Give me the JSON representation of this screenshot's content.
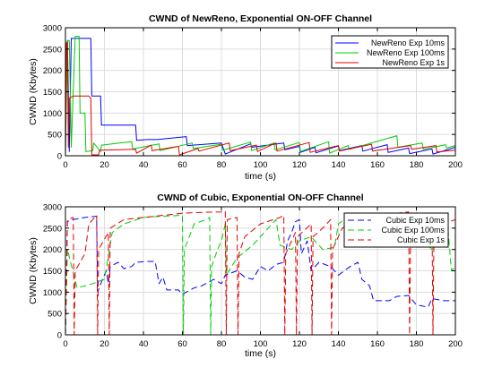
{
  "chart_data": [
    {
      "type": "line",
      "title": "CWND of NewReno, Exponential ON-OFF Channel",
      "xlabel": "time (s)",
      "ylabel": "CWND (Kbytes)",
      "xlim": [
        0,
        200
      ],
      "ylim": [
        0,
        3000
      ],
      "xticks": [
        0,
        20,
        40,
        60,
        80,
        100,
        120,
        140,
        160,
        180,
        200
      ],
      "yticks": [
        0,
        500,
        1000,
        1500,
        2000,
        2500,
        3000
      ],
      "grid": true,
      "legend_position": "top-right",
      "series": [
        {
          "name": "NewReno Exp 10ms",
          "color": "#0000ff",
          "dash": "solid",
          "points": [
            [
              0,
              0
            ],
            [
              0.5,
              2600
            ],
            [
              1,
              2700
            ],
            [
              2,
              100
            ],
            [
              3,
              2750
            ],
            [
              13,
              2750
            ],
            [
              13.5,
              1400
            ],
            [
              18,
              1400
            ],
            [
              18.5,
              720
            ],
            [
              36,
              720
            ],
            [
              36.5,
              360
            ],
            [
              42,
              380
            ],
            [
              47,
              380
            ],
            [
              62,
              450
            ],
            [
              62.5,
              240
            ],
            [
              80,
              300
            ],
            [
              82,
              40
            ],
            [
              95,
              280
            ],
            [
              95.5,
              200
            ],
            [
              112,
              300
            ],
            [
              112.5,
              140
            ],
            [
              120,
              220
            ],
            [
              120.5,
              80
            ],
            [
              128,
              200
            ],
            [
              128.5,
              70
            ],
            [
              140,
              230
            ],
            [
              140.5,
              120
            ],
            [
              152,
              240
            ],
            [
              152.5,
              110
            ],
            [
              165,
              260
            ],
            [
              165.5,
              80
            ],
            [
              176,
              180
            ],
            [
              176.5,
              50
            ],
            [
              188,
              160
            ],
            [
              188.5,
              40
            ],
            [
              200,
              200
            ]
          ]
        },
        {
          "name": "NewReno Exp 100ms",
          "color": "#00cc00",
          "dash": "solid",
          "points": [
            [
              0,
              0
            ],
            [
              1,
              2700
            ],
            [
              2,
              2700
            ],
            [
              3,
              200
            ],
            [
              5,
              2800
            ],
            [
              7,
              2800
            ],
            [
              7.5,
              1000
            ],
            [
              10,
              1000
            ],
            [
              10.5,
              100
            ],
            [
              14,
              120
            ],
            [
              14.5,
              300
            ],
            [
              18,
              100
            ],
            [
              18.5,
              250
            ],
            [
              34,
              330
            ],
            [
              34.5,
              160
            ],
            [
              48,
              280
            ],
            [
              48.5,
              120
            ],
            [
              65,
              300
            ],
            [
              65.5,
              170
            ],
            [
              80,
              270
            ],
            [
              80.5,
              130
            ],
            [
              95,
              320
            ],
            [
              95.5,
              120
            ],
            [
              107,
              300
            ],
            [
              107.5,
              140
            ],
            [
              120,
              310
            ],
            [
              120.5,
              100
            ],
            [
              135,
              330
            ],
            [
              135.5,
              60
            ],
            [
              145,
              240
            ],
            [
              145.5,
              150
            ],
            [
              170,
              470
            ],
            [
              170.5,
              200
            ],
            [
              183,
              300
            ],
            [
              183.5,
              150
            ],
            [
              195,
              260
            ],
            [
              195.5,
              180
            ],
            [
              200,
              240
            ]
          ]
        },
        {
          "name": "NewReno Exp 1s",
          "color": "#e00000",
          "dash": "solid",
          "points": [
            [
              0,
              0
            ],
            [
              0.5,
              2650
            ],
            [
              1,
              2650
            ],
            [
              1.5,
              200
            ],
            [
              2,
              1350
            ],
            [
              4,
              1400
            ],
            [
              12,
              1400
            ],
            [
              13,
              1350
            ],
            [
              13.5,
              20
            ],
            [
              17,
              20
            ],
            [
              17.5,
              130
            ],
            [
              36,
              150
            ],
            [
              36.5,
              60
            ],
            [
              44,
              250
            ],
            [
              44.5,
              120
            ],
            [
              58,
              220
            ],
            [
              58.5,
              20
            ],
            [
              68,
              170
            ],
            [
              68.5,
              110
            ],
            [
              84,
              300
            ],
            [
              84.5,
              120
            ],
            [
              98,
              250
            ],
            [
              98.5,
              100
            ],
            [
              108,
              300
            ],
            [
              108.5,
              110
            ],
            [
              125,
              310
            ],
            [
              125.5,
              80
            ],
            [
              140,
              240
            ],
            [
              140.5,
              110
            ],
            [
              157,
              270
            ],
            [
              157.5,
              110
            ],
            [
              177,
              240
            ],
            [
              177.5,
              150
            ],
            [
              190,
              240
            ],
            [
              190.5,
              90
            ],
            [
              200,
              130
            ]
          ]
        }
      ]
    },
    {
      "type": "line",
      "title": "CWND of Cubic, Exponential ON-OFF Channel",
      "xlabel": "time (s)",
      "ylabel": "CWND (Kbytes)",
      "xlim": [
        0,
        200
      ],
      "ylim": [
        0,
        3000
      ],
      "xticks": [
        0,
        20,
        40,
        60,
        80,
        100,
        120,
        140,
        160,
        180,
        200
      ],
      "yticks": [
        0,
        500,
        1000,
        1500,
        2000,
        2500,
        3000
      ],
      "grid": true,
      "legend_position": "top-right",
      "series": [
        {
          "name": "Cubic Exp 10ms",
          "color": "#0000ff",
          "dash": "dashed",
          "points": [
            [
              0,
              0
            ],
            [
              1,
              2650
            ],
            [
              4,
              2700
            ],
            [
              10,
              2750
            ],
            [
              16,
              2780
            ],
            [
              16.5,
              1000
            ],
            [
              19,
              1300
            ],
            [
              21,
              1500
            ],
            [
              22,
              1200
            ],
            [
              23,
              1600
            ],
            [
              27,
              1700
            ],
            [
              30,
              1550
            ],
            [
              34,
              1600
            ],
            [
              36,
              1700
            ],
            [
              42,
              1720
            ],
            [
              46,
              1720
            ],
            [
              48,
              1200
            ],
            [
              50,
              1350
            ],
            [
              52,
              1050
            ],
            [
              58,
              1050
            ],
            [
              60,
              950
            ],
            [
              66,
              1100
            ],
            [
              70,
              1150
            ],
            [
              76,
              1300
            ],
            [
              80,
              1200
            ],
            [
              82,
              1400
            ],
            [
              88,
              1500
            ],
            [
              92,
              1350
            ],
            [
              96,
              1300
            ],
            [
              100,
              1600
            ],
            [
              104,
              1500
            ],
            [
              108,
              1650
            ],
            [
              112,
              1700
            ],
            [
              114,
              2200
            ],
            [
              116,
              2400
            ],
            [
              118,
              2650
            ],
            [
              120,
              2700
            ],
            [
              121,
              1900
            ],
            [
              124,
              2200
            ],
            [
              126,
              1500
            ],
            [
              130,
              1700
            ],
            [
              136,
              1600
            ],
            [
              140,
              1400
            ],
            [
              146,
              1600
            ],
            [
              150,
              1700
            ],
            [
              152,
              1300
            ],
            [
              156,
              1150
            ],
            [
              158,
              800
            ],
            [
              166,
              800
            ],
            [
              170,
              900
            ],
            [
              176,
              920
            ],
            [
              180,
              700
            ],
            [
              186,
              650
            ],
            [
              188,
              850
            ],
            [
              194,
              800
            ],
            [
              200,
              800
            ]
          ]
        },
        {
          "name": "Cubic Exp 100ms",
          "color": "#00cc00",
          "dash": "dashed",
          "points": [
            [
              0,
              0
            ],
            [
              1,
              2000
            ],
            [
              6,
              1100
            ],
            [
              14,
              1200
            ],
            [
              20,
              1300
            ],
            [
              24,
              2400
            ],
            [
              30,
              2600
            ],
            [
              40,
              2750
            ],
            [
              50,
              2780
            ],
            [
              60,
              2800
            ],
            [
              60.5,
              0
            ],
            [
              61,
              2000
            ],
            [
              66,
              2600
            ],
            [
              72,
              2700
            ],
            [
              74,
              2750
            ],
            [
              74.5,
              0
            ],
            [
              75,
              1600
            ],
            [
              78,
              2000
            ],
            [
              80,
              2200
            ],
            [
              82,
              2600
            ],
            [
              82.5,
              1400
            ],
            [
              88,
              1800
            ],
            [
              96,
              2100
            ],
            [
              100,
              2300
            ],
            [
              104,
              2500
            ],
            [
              108,
              2700
            ],
            [
              110,
              2100
            ],
            [
              116,
              2000
            ],
            [
              120,
              2200
            ],
            [
              126,
              2300
            ],
            [
              132,
              2000
            ],
            [
              138,
              2050
            ],
            [
              140,
              2600
            ],
            [
              146,
              2800
            ],
            [
              150,
              2800
            ],
            [
              152,
              2300
            ],
            [
              158,
              2400
            ],
            [
              164,
              2500
            ],
            [
              170,
              2650
            ],
            [
              172,
              2500
            ],
            [
              176,
              2100
            ],
            [
              180,
              2300
            ],
            [
              184,
              2200
            ],
            [
              188,
              2000
            ],
            [
              190,
              2150
            ],
            [
              194,
              2400
            ],
            [
              196,
              2600
            ],
            [
              198,
              1500
            ],
            [
              200,
              1600
            ]
          ]
        },
        {
          "name": "Cubic Exp 1s",
          "color": "#e00000",
          "dash": "dashed",
          "points": [
            [
              0,
              0
            ],
            [
              1,
              2700
            ],
            [
              4,
              2750
            ],
            [
              4.5,
              0
            ],
            [
              5,
              1500
            ],
            [
              10,
              1900
            ],
            [
              12,
              2600
            ],
            [
              16,
              2800
            ],
            [
              16.5,
              0
            ],
            [
              17,
              2000
            ],
            [
              22,
              2400
            ],
            [
              22.5,
              0
            ],
            [
              23,
              2500
            ],
            [
              30,
              2700
            ],
            [
              40,
              2750
            ],
            [
              50,
              2800
            ],
            [
              60,
              2850
            ],
            [
              70,
              2870
            ],
            [
              80,
              2880
            ],
            [
              82,
              2900
            ],
            [
              82.5,
              0
            ],
            [
              83,
              2700
            ],
            [
              88,
              2750
            ],
            [
              88.5,
              0
            ],
            [
              89,
              1900
            ],
            [
              92,
              2300
            ],
            [
              100,
              2600
            ],
            [
              110,
              2750
            ],
            [
              112,
              2800
            ],
            [
              112.5,
              0
            ],
            [
              113,
              1900
            ],
            [
              118,
              2400
            ],
            [
              118.5,
              0
            ],
            [
              119,
              2300
            ],
            [
              126,
              2600
            ],
            [
              126.5,
              0
            ],
            [
              127,
              2300
            ],
            [
              132,
              2500
            ],
            [
              136,
              2700
            ],
            [
              136.5,
              0
            ],
            [
              137,
              2000
            ],
            [
              142,
              2500
            ],
            [
              150,
              2700
            ],
            [
              160,
              2800
            ],
            [
              170,
              2850
            ],
            [
              176,
              2880
            ],
            [
              176.5,
              0
            ],
            [
              177,
              2200
            ],
            [
              182,
              2600
            ],
            [
              188,
              2750
            ],
            [
              188.5,
              0
            ],
            [
              189,
              2300
            ],
            [
              194,
              2600
            ],
            [
              200,
              2700
            ]
          ]
        }
      ]
    }
  ]
}
